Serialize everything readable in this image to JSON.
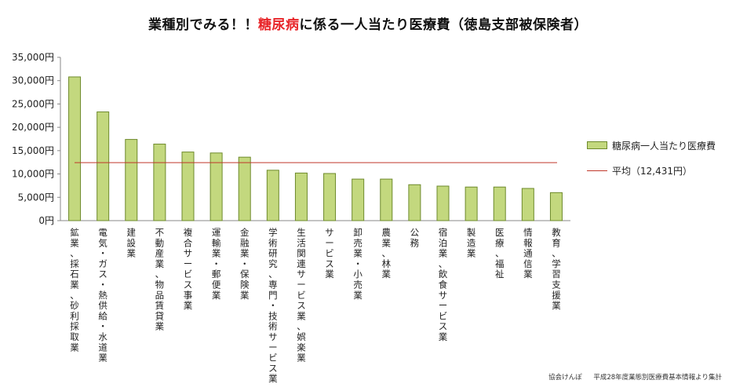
{
  "header": {
    "title_before": "業種別でみる！！",
    "title_highlight": "糖尿病",
    "title_after": "に係る一人当たり医療費（徳島支部被保険者）",
    "highlight_color": "#e8262a"
  },
  "legend": {
    "bar_label": "糖尿病一人当たり医療費",
    "line_label": "平均（12,431円）"
  },
  "source": {
    "org": "協会けんぽ",
    "note": "平成28年度業態別医療費基本情報より集計"
  },
  "colors": {
    "bar_fill": "#c3d87e",
    "bar_stroke": "#6e8a2c",
    "avg_line": "#c0392b",
    "axis": "#888888"
  },
  "chart_data": {
    "type": "bar",
    "title": "業種別でみる！！糖尿病に係る一人当たり医療費（徳島支部被保険者）",
    "xlabel": "",
    "ylabel": "",
    "ylim": [
      0,
      35000
    ],
    "yticks": [
      0,
      5000,
      10000,
      15000,
      20000,
      25000,
      30000,
      35000
    ],
    "ytick_labels": [
      "0円",
      "5,000円",
      "10,000円",
      "15,000円",
      "20,000円",
      "25,000円",
      "30,000円",
      "35,000円"
    ],
    "grid": false,
    "legend_position": "right",
    "categories": [
      "鉱業、採石業、砂利採取業",
      "電気・ガス・熱供給・水道業",
      "建設業",
      "不動産業、物品賃貸業",
      "複合サービス事業",
      "運輸業・郵便業",
      "金融業・保険業",
      "学術研究、専門・技術サービス業",
      "生活関連サービス業、娯楽業",
      "サービス業",
      "卸売業・小売業",
      "農業、林業",
      "公務",
      "宿泊業、飲食サービス業",
      "製造業",
      "医療、福祉",
      "情報通信業",
      "教育、学習支援業"
    ],
    "series": [
      {
        "name": "糖尿病一人当たり医療費",
        "values": [
          30800,
          23300,
          17400,
          16400,
          14700,
          14500,
          13600,
          10800,
          10200,
          10100,
          8900,
          8900,
          7700,
          7400,
          7200,
          7200,
          6900,
          6000
        ]
      }
    ],
    "average": {
      "name": "平均（12,431円）",
      "value": 12431
    }
  }
}
